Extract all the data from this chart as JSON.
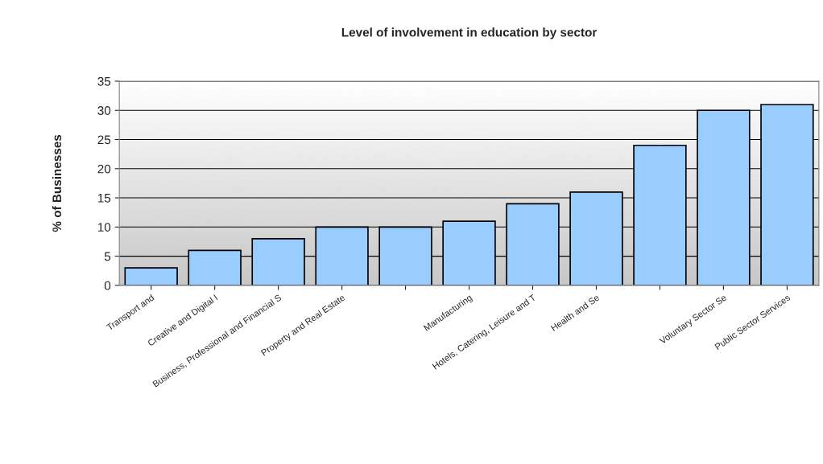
{
  "chart_data": {
    "type": "bar",
    "title": "Level of involvement in education by sector",
    "ylabel": "% of Businesses",
    "categories": [
      "Transport and",
      "Creative and Digital I",
      "Business, Professional and Financial S",
      "Property and Real Estate",
      null,
      "Manufacturing",
      "Hotels, Catering, Leisure and T",
      "Health and Se",
      null,
      "Voluntary Sector Se",
      "Public Sector Services"
    ],
    "values": [
      3,
      6,
      8,
      10,
      10,
      11,
      14,
      16,
      24,
      30,
      31
    ],
    "color": "#99ccff",
    "ylim": [
      0,
      35
    ],
    "yticks": [
      0,
      5,
      10,
      15,
      20,
      25,
      30,
      35
    ],
    "grid": "y"
  }
}
